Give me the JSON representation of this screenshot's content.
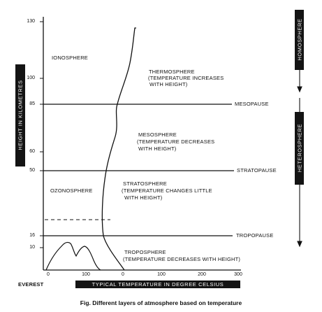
{
  "caption": "Fig. Different layers of atmosphere based on temperature",
  "y_axis_label": "HEIGHT IN KILOMETRES",
  "x_axis_label": "TYPICAL TEMPERATURE IN DEGREE CELSIUS",
  "y_ticks": [
    "130",
    "100",
    "85",
    "60",
    "50",
    "16",
    "10"
  ],
  "x_ticks": [
    "0",
    "100",
    "0",
    "100",
    "200",
    "300"
  ],
  "boundaries": [
    "MESOPAUSE",
    "STRATOPAUSE",
    "TROPOPAUSE"
  ],
  "regions": [
    "IONOSPHERE",
    "OZONOSPHERE"
  ],
  "spheres": [
    "HOMOSPHERE",
    "HETEROSPHERE"
  ],
  "layers": [
    {
      "name": "THERMOSPHERE",
      "note": [
        "(TEMPERATURE INCREASES",
        "WITH HEIGHT)"
      ]
    },
    {
      "name": "MESOSPHERE",
      "note": [
        "(TEMPERATURE DECREASES",
        "WITH HEIGHT)"
      ]
    },
    {
      "name": "STRATOSPHERE",
      "note": [
        "(TEMPERATURE CHANGES LITTLE",
        "WITH HEIGHT)"
      ]
    },
    {
      "name": "TROPOSPHERE",
      "note": [
        "(TEMPERATURE DECREASES WITH HEIGHT)"
      ]
    }
  ],
  "mountain_label": "EVEREST"
}
